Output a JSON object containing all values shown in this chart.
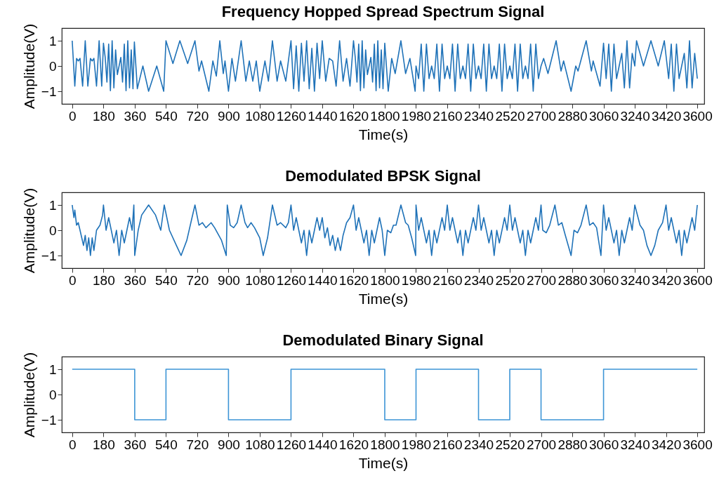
{
  "chart_data": [
    {
      "type": "line",
      "title": "Frequency Hopped Spread Spectrum Signal",
      "xlabel": "Time(s)",
      "ylabel": "Amplitude(V)",
      "xlim": [
        -60,
        3640
      ],
      "ylim": [
        -1.5,
        1.5
      ],
      "xticks": [
        0,
        180,
        360,
        540,
        720,
        900,
        1080,
        1260,
        1440,
        1620,
        1800,
        1980,
        2160,
        2340,
        2520,
        2700,
        2880,
        3060,
        3240,
        3420,
        3600
      ],
      "yticks": [
        -1,
        0,
        1
      ],
      "grid": false,
      "series": [
        {
          "color": "#1f72b8",
          "x": [
            0,
            15,
            25,
            35,
            45,
            60,
            75,
            90,
            105,
            115,
            125,
            140,
            155,
            170,
            180,
            190,
            200,
            210,
            220,
            230,
            240,
            250,
            260,
            270,
            280,
            290,
            300,
            310,
            320,
            330,
            340,
            350,
            358,
            375,
            407,
            440,
            487,
            527,
            540,
            580,
            620,
            665,
            707,
            730,
            745,
            787,
            810,
            830,
            850,
            870,
            880,
            900,
            920,
            940,
            973,
            1000,
            1020,
            1040,
            1060,
            1080,
            1110,
            1130,
            1153,
            1180,
            1200,
            1230,
            1260,
            1275,
            1290,
            1305,
            1320,
            1335,
            1350,
            1365,
            1380,
            1395,
            1410,
            1425,
            1440,
            1460,
            1480,
            1500,
            1520,
            1540,
            1560,
            1580,
            1600,
            1620,
            1630,
            1640,
            1650,
            1660,
            1670,
            1680,
            1690,
            1700,
            1710,
            1720,
            1730,
            1740,
            1750,
            1760,
            1770,
            1780,
            1790,
            1800,
            1820,
            1840,
            1860,
            1893,
            1920,
            1945,
            1975,
            1980,
            1995,
            2010,
            2025,
            2040,
            2055,
            2070,
            2085,
            2100,
            2115,
            2130,
            2145,
            2160,
            2175,
            2190,
            2205,
            2220,
            2235,
            2250,
            2265,
            2280,
            2295,
            2310,
            2325,
            2340,
            2355,
            2370,
            2385,
            2400,
            2415,
            2430,
            2445,
            2460,
            2475,
            2490,
            2505,
            2520,
            2535,
            2550,
            2565,
            2580,
            2595,
            2610,
            2625,
            2640,
            2655,
            2670,
            2685,
            2700,
            2715,
            2740,
            2787,
            2815,
            2830,
            2873,
            2900,
            2913,
            2960,
            2990,
            3000,
            3040,
            3060,
            3075,
            3090,
            3105,
            3120,
            3135,
            3150,
            3165,
            3180,
            3195,
            3210,
            3225,
            3240,
            3250,
            3290,
            3333,
            3375,
            3410,
            3435,
            3450,
            3465,
            3480,
            3495,
            3510,
            3525,
            3540,
            3555,
            3570,
            3585,
            3600
          ],
          "values": [
            1,
            -0.8,
            0.3,
            0.2,
            0.3,
            -0.8,
            1,
            -0.8,
            0.3,
            0.2,
            0.3,
            -0.8,
            1,
            -0.8,
            0.9,
            0.34,
            -0.64,
            0.87,
            -0.98,
            1,
            -0.87,
            0.64,
            -0.34,
            0,
            0.34,
            -0.64,
            0.87,
            -0.98,
            1,
            -0.87,
            0.64,
            -0.9,
            0.95,
            -0.9,
            0,
            -1,
            0,
            -1,
            1,
            0.1,
            1,
            0.1,
            1,
            -0.2,
            0.2,
            -1,
            0.2,
            -0.4,
            1,
            -0.3,
            0.2,
            -1,
            0.3,
            -0.6,
            1,
            -0.6,
            0.2,
            -0.6,
            0.2,
            -1,
            0.2,
            -0.6,
            1,
            -0.6,
            0.2,
            -0.6,
            1,
            -0.9,
            0.8,
            -1,
            0.9,
            -0.6,
            1,
            -0.9,
            0.7,
            -1,
            0.9,
            -0.5,
            1,
            -0.6,
            0.3,
            0.2,
            -0.8,
            1,
            -0.6,
            0.3,
            -0.8,
            1,
            0.34,
            -0.64,
            0.87,
            -0.98,
            1,
            -0.87,
            0.64,
            -0.34,
            0,
            0.34,
            -0.64,
            0.87,
            -0.98,
            1,
            -0.87,
            0.64,
            -0.9,
            0.9,
            -1,
            0.3,
            -0.3,
            1,
            -0.3,
            0.3,
            -1,
            0,
            -0.5,
            0.87,
            -1,
            0.87,
            -0.5,
            0,
            -0.5,
            0.87,
            -1,
            0.87,
            -0.5,
            0,
            -0.5,
            0.87,
            -1,
            0.87,
            -0.5,
            0,
            -0.5,
            0.87,
            -1,
            0.87,
            -0.5,
            0,
            -0.5,
            0.87,
            -1,
            0.87,
            -0.5,
            0,
            -0.5,
            0.87,
            -1,
            0.87,
            -0.5,
            0,
            -0.5,
            0.87,
            -1,
            0.87,
            -0.5,
            0,
            -0.5,
            0.87,
            -1,
            0.87,
            -0.5,
            0,
            0.3,
            -0.3,
            1,
            -0.2,
            0.2,
            -1,
            0,
            -0.2,
            1,
            -0.2,
            0.2,
            -0.8,
            0.9,
            -0.5,
            0.87,
            -1,
            0.87,
            -0.5,
            0,
            0.5,
            -0.87,
            1,
            -0.87,
            0.5,
            0,
            1,
            0,
            1,
            0,
            1,
            -0.5,
            0.87,
            -1,
            0.87,
            -0.5,
            0,
            0.5,
            -0.87,
            1,
            -0.87,
            0.5,
            -0.5
          ]
        }
      ]
    },
    {
      "type": "line",
      "title": "Demodulated BPSK Signal",
      "xlabel": "Time(s)",
      "ylabel": "Amplitude(V)",
      "xlim": [
        -60,
        3640
      ],
      "ylim": [
        -1.5,
        1.5
      ],
      "xticks": [
        0,
        180,
        360,
        540,
        720,
        900,
        1080,
        1260,
        1440,
        1620,
        1800,
        1980,
        2160,
        2340,
        2520,
        2700,
        2880,
        3060,
        3240,
        3420,
        3600
      ],
      "yticks": [
        -1,
        0,
        1
      ],
      "grid": false,
      "series": [
        {
          "color": "#1f72b8",
          "x": [
            0,
            10,
            15,
            25,
            35,
            45,
            55,
            65,
            75,
            85,
            95,
            105,
            115,
            125,
            140,
            160,
            175,
            180,
            195,
            210,
            225,
            240,
            255,
            270,
            285,
            300,
            315,
            330,
            345,
            355,
            360,
            380,
            400,
            440,
            480,
            510,
            530,
            560,
            600,
            627,
            660,
            690,
            707,
            730,
            750,
            770,
            800,
            820,
            860,
            887,
            893,
            910,
            930,
            950,
            973,
            995,
            1010,
            1030,
            1050,
            1080,
            1100,
            1125,
            1153,
            1180,
            1200,
            1230,
            1245,
            1260,
            1275,
            1290,
            1305,
            1320,
            1335,
            1350,
            1365,
            1380,
            1395,
            1410,
            1425,
            1440,
            1455,
            1470,
            1485,
            1500,
            1515,
            1530,
            1545,
            1560,
            1580,
            1600,
            1620,
            1635,
            1650,
            1665,
            1680,
            1695,
            1710,
            1725,
            1740,
            1755,
            1770,
            1785,
            1800,
            1815,
            1835,
            1850,
            1865,
            1893,
            1920,
            1935,
            1955,
            1978,
            1980,
            1995,
            2010,
            2025,
            2040,
            2055,
            2070,
            2085,
            2100,
            2115,
            2130,
            2145,
            2160,
            2175,
            2190,
            2205,
            2220,
            2235,
            2250,
            2265,
            2280,
            2295,
            2310,
            2325,
            2340,
            2355,
            2370,
            2385,
            2400,
            2415,
            2430,
            2445,
            2460,
            2475,
            2490,
            2505,
            2520,
            2535,
            2550,
            2565,
            2580,
            2595,
            2610,
            2625,
            2640,
            2655,
            2670,
            2685,
            2700,
            2710,
            2730,
            2750,
            2780,
            2800,
            2820,
            2840,
            2873,
            2890,
            2910,
            2930,
            2960,
            2980,
            3000,
            3020,
            3045,
            3060,
            3075,
            3090,
            3105,
            3120,
            3135,
            3150,
            3165,
            3180,
            3195,
            3210,
            3225,
            3240,
            3270,
            3290,
            3310,
            3333,
            3355,
            3375,
            3400,
            3420,
            3435,
            3450,
            3465,
            3480,
            3495,
            3510,
            3525,
            3540,
            3555,
            3570,
            3585,
            3600
          ],
          "values": [
            1,
            0.5,
            0.8,
            0.2,
            0.3,
            0,
            -0.3,
            -0.6,
            -0.2,
            -0.8,
            -0.3,
            -1,
            -0.3,
            -0.8,
            0,
            0.2,
            0.6,
            1,
            0,
            0.5,
            0,
            -0.5,
            0,
            -1,
            0,
            -0.5,
            0,
            0.5,
            0,
            1,
            -1,
            0,
            0.6,
            1,
            0.6,
            0,
            1,
            0,
            -0.6,
            -1,
            -0.4,
            0.5,
            1,
            0.2,
            0.3,
            0.1,
            0.3,
            0.1,
            -0.4,
            -1,
            1,
            0.2,
            0.1,
            0.3,
            1,
            0.3,
            0.1,
            0.3,
            0.1,
            -0.3,
            -1,
            -0.3,
            1,
            0.2,
            0.3,
            0.1,
            0.3,
            1,
            0,
            0.5,
            0,
            -0.5,
            0,
            -1,
            0,
            -0.5,
            0,
            0.5,
            0,
            0.5,
            -0.3,
            0.1,
            -0.6,
            -0.2,
            -0.8,
            -0.3,
            -0.8,
            -0.2,
            0.3,
            0.5,
            1,
            0,
            0.5,
            0,
            -0.5,
            0,
            -1,
            0,
            -0.5,
            0,
            0.5,
            0,
            -1,
            0,
            -0.1,
            0.2,
            0.2,
            1,
            0.3,
            0.2,
            -0.3,
            -1,
            1,
            0,
            0.5,
            0,
            -0.5,
            0,
            -1,
            0,
            -0.5,
            0,
            0.5,
            0,
            1,
            0,
            0.5,
            0,
            -0.5,
            0,
            -1,
            0,
            -0.5,
            0,
            0.5,
            0,
            1,
            0,
            0.5,
            0,
            -0.5,
            0,
            -1,
            0,
            -0.5,
            0,
            0.5,
            0,
            1,
            0,
            0.5,
            0,
            -0.5,
            0,
            -1,
            0,
            -0.5,
            0,
            0.5,
            0,
            1,
            0,
            -0.1,
            0.2,
            1,
            0.2,
            0.3,
            -0.2,
            -1,
            0,
            -0.1,
            0.2,
            1,
            0.2,
            0.3,
            0.1,
            -1,
            1,
            0,
            0.5,
            0,
            -0.5,
            0,
            -1,
            0,
            -0.5,
            0,
            0.5,
            0,
            1,
            0.2,
            0,
            -0.6,
            -1,
            -0.6,
            0,
            0.3,
            1,
            0,
            0.5,
            0,
            -0.5,
            0,
            -1,
            0,
            -0.5,
            0,
            0.5,
            0,
            1
          ]
        }
      ]
    },
    {
      "type": "step",
      "title": "Demodulated Binary Signal",
      "xlabel": "Time(s)",
      "ylabel": "Amplitude(V)",
      "xlim": [
        -60,
        3640
      ],
      "ylim": [
        -1.5,
        1.5
      ],
      "xticks": [
        0,
        180,
        360,
        540,
        720,
        900,
        1080,
        1260,
        1440,
        1620,
        1800,
        1980,
        2160,
        2340,
        2520,
        2700,
        2880,
        3060,
        3240,
        3420,
        3600
      ],
      "yticks": [
        -1,
        0,
        1
      ],
      "grid": false,
      "series": [
        {
          "color": "#3d95d6",
          "x": [
            0,
            360,
            540,
            900,
            1260,
            1800,
            1980,
            2340,
            2520,
            2700,
            3060,
            3600
          ],
          "values": [
            1,
            -1,
            1,
            -1,
            1,
            -1,
            1,
            -1,
            1,
            -1,
            1,
            1
          ]
        }
      ]
    }
  ]
}
